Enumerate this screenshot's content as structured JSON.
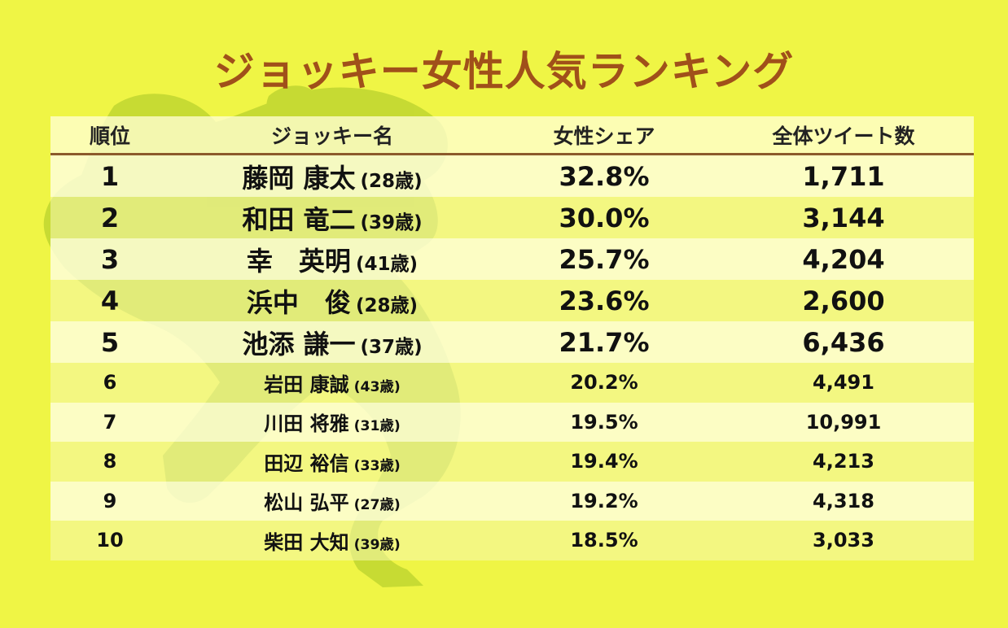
{
  "title": "ジョッキー女性人気ランキング",
  "colors": {
    "background": "#eff545",
    "title": "#a0501a",
    "rule": "#8b5a2b"
  },
  "table": {
    "headers": [
      "順位",
      "ジョッキー名",
      "女性シェア",
      "全体ツイート数"
    ]
  },
  "chart_data": {
    "type": "table",
    "columns": [
      "順位",
      "ジョッキー名",
      "女性シェア",
      "全体ツイート数"
    ],
    "rows": [
      {
        "rank": "1",
        "name": "藤岡 康太",
        "age": "(28歳)",
        "share": "32.8%",
        "tweets": "1,711"
      },
      {
        "rank": "2",
        "name": "和田 竜二",
        "age": "(39歳)",
        "share": "30.0%",
        "tweets": "3,144"
      },
      {
        "rank": "3",
        "name": "幸　英明",
        "age": "(41歳)",
        "share": "25.7%",
        "tweets": "4,204"
      },
      {
        "rank": "4",
        "name": "浜中　俊",
        "age": "(28歳)",
        "share": "23.6%",
        "tweets": "2,600"
      },
      {
        "rank": "5",
        "name": "池添 謙一",
        "age": "(37歳)",
        "share": "21.7%",
        "tweets": "6,436"
      },
      {
        "rank": "6",
        "name": "岩田 康誠",
        "age": "(43歳)",
        "share": "20.2%",
        "tweets": "4,491"
      },
      {
        "rank": "7",
        "name": "川田 将雅",
        "age": "(31歳)",
        "share": "19.5%",
        "tweets": "10,991"
      },
      {
        "rank": "8",
        "name": "田辺 裕信",
        "age": "(33歳)",
        "share": "19.4%",
        "tweets": "4,213"
      },
      {
        "rank": "9",
        "name": "松山 弘平",
        "age": "(27歳)",
        "share": "19.2%",
        "tweets": "4,318"
      },
      {
        "rank": "10",
        "name": "柴田 大知",
        "age": "(39歳)",
        "share": "18.5%",
        "tweets": "3,033"
      }
    ]
  }
}
